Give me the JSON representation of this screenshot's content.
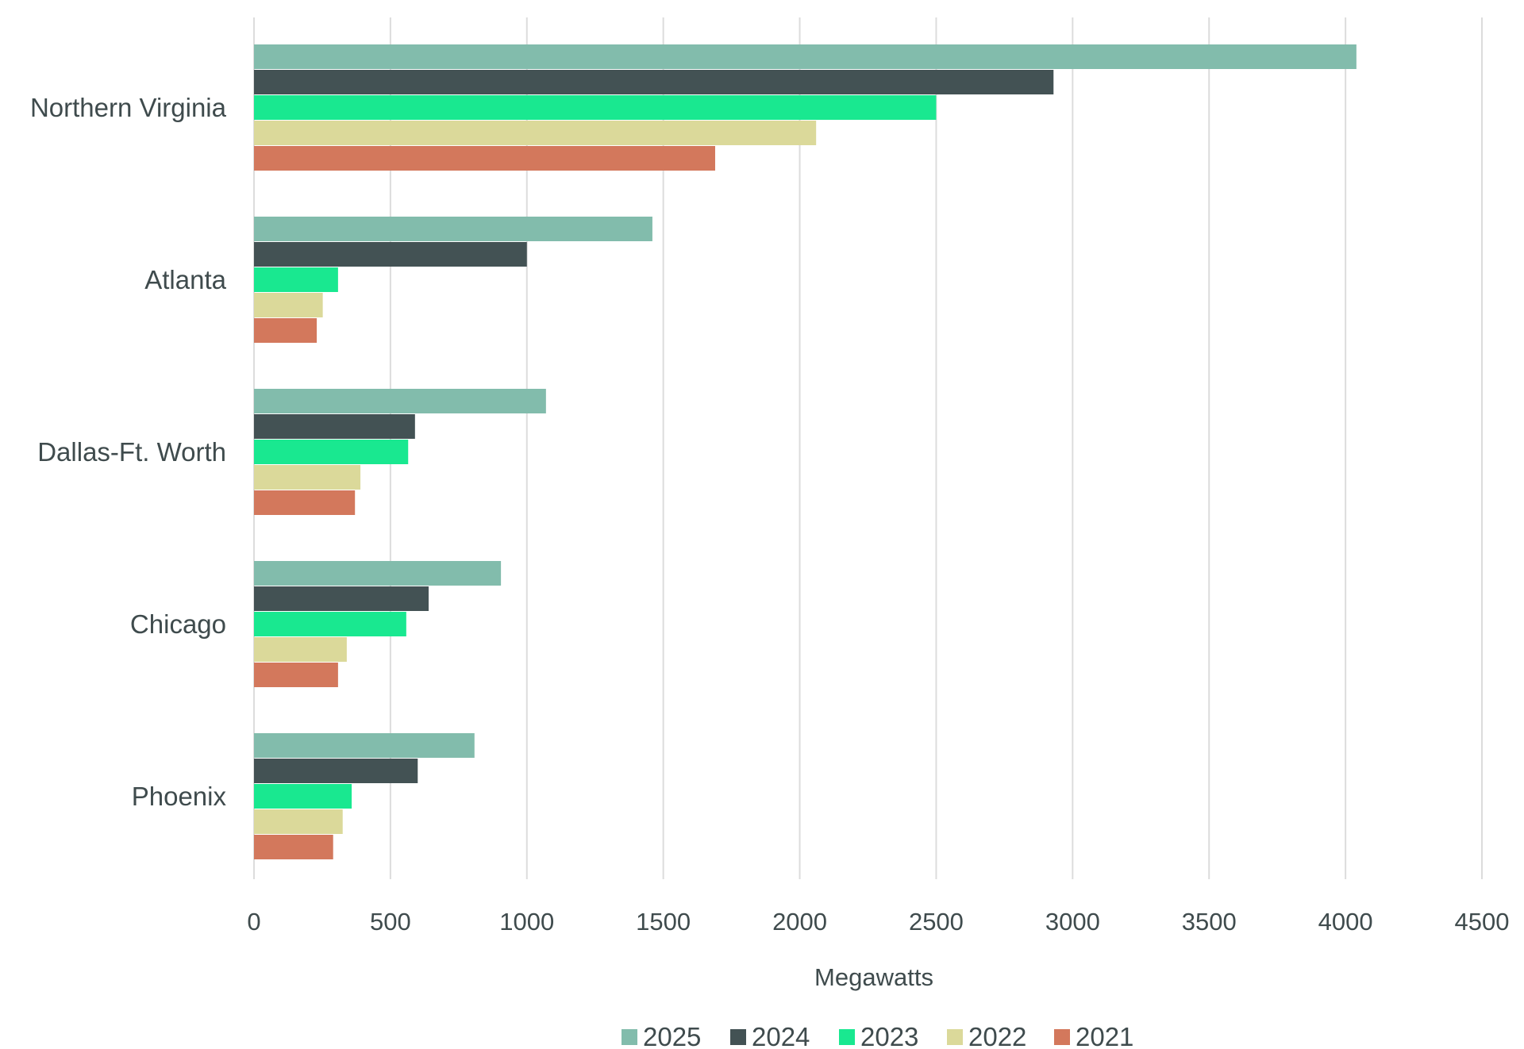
{
  "chart_data": {
    "type": "bar",
    "orientation": "horizontal",
    "categories": [
      "Northern Virginia",
      "Atlanta",
      "Dallas-Ft. Worth",
      "Chicago",
      "Phoenix"
    ],
    "series": [
      {
        "name": "2025",
        "color": "#82bcac",
        "values": [
          4040,
          1460,
          1070,
          905,
          808
        ]
      },
      {
        "name": "2024",
        "color": "#435254",
        "values": [
          2930,
          1000,
          590,
          640,
          600
        ]
      },
      {
        "name": "2023",
        "color": "#19e890",
        "values": [
          2500,
          308,
          565,
          558,
          358
        ]
      },
      {
        "name": "2022",
        "color": "#dbd99a",
        "values": [
          2060,
          252,
          390,
          340,
          325
        ]
      },
      {
        "name": "2021",
        "color": "#d3785c",
        "values": [
          1690,
          230,
          370,
          308,
          290
        ]
      }
    ],
    "x_ticks": [
      0,
      500,
      1000,
      1500,
      2000,
      2500,
      3000,
      3500,
      4000,
      4500
    ],
    "x_ticks_text": [
      "0",
      "500",
      "1000",
      "1500",
      "2000",
      "2500",
      "3000",
      "3500",
      "4000",
      "4500"
    ],
    "xlim": [
      0,
      4500
    ],
    "xlabel": "Megawatts",
    "ylabel": "",
    "title": "",
    "grid": "vertical",
    "legend_position": "bottom",
    "gridline_color": "#dcdcdc"
  }
}
